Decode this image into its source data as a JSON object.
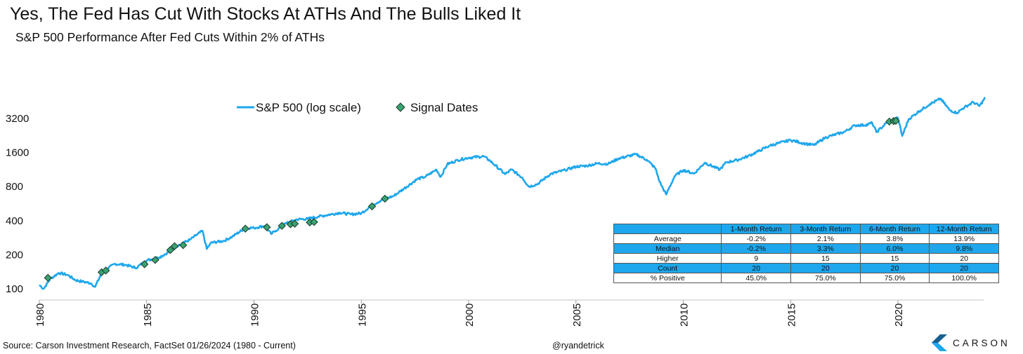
{
  "title": "Yes, The Fed Has Cut With Stocks At ATHs And The Bulls Liked It",
  "subtitle": "S&P 500 Performance After Fed Cuts Within 2% of ATHs",
  "colors": {
    "line": "#1ea7ec",
    "marker_fill": "#3aa372",
    "marker_stroke": "#1c3a2a",
    "table_header": "#1ea7ec"
  },
  "chart_data": {
    "type": "line",
    "y_scale": "log",
    "ylim": [
      100,
      5000
    ],
    "xlim": [
      1980,
      2024.2
    ],
    "x_ticks": [
      "1980",
      "1985",
      "1990",
      "1995",
      "2000",
      "2005",
      "2010",
      "2015",
      "2020"
    ],
    "y_ticks": [
      "100",
      "200",
      "400",
      "800",
      "1600",
      "3200"
    ],
    "legend_position": "top-center",
    "series": [
      {
        "name": "S&P 500 (log scale)",
        "points": [
          [
            1980.0,
            108
          ],
          [
            1980.2,
            100
          ],
          [
            1980.5,
            122
          ],
          [
            1980.9,
            138
          ],
          [
            1981.3,
            133
          ],
          [
            1981.7,
            119
          ],
          [
            1982.0,
            116
          ],
          [
            1982.4,
            112
          ],
          [
            1982.6,
            104
          ],
          [
            1982.9,
            138
          ],
          [
            1983.5,
            166
          ],
          [
            1984.0,
            163
          ],
          [
            1984.5,
            153
          ],
          [
            1985.0,
            178
          ],
          [
            1985.6,
            190
          ],
          [
            1986.0,
            210
          ],
          [
            1986.5,
            245
          ],
          [
            1987.0,
            270
          ],
          [
            1987.6,
            325
          ],
          [
            1987.8,
            225
          ],
          [
            1988.0,
            255
          ],
          [
            1988.6,
            265
          ],
          [
            1989.0,
            290
          ],
          [
            1989.6,
            345
          ],
          [
            1990.0,
            345
          ],
          [
            1990.5,
            360
          ],
          [
            1990.8,
            305
          ],
          [
            1991.0,
            325
          ],
          [
            1991.5,
            380
          ],
          [
            1992.0,
            410
          ],
          [
            1992.5,
            415
          ],
          [
            1993.0,
            435
          ],
          [
            1993.6,
            455
          ],
          [
            1994.0,
            470
          ],
          [
            1994.5,
            455
          ],
          [
            1995.0,
            465
          ],
          [
            1995.5,
            550
          ],
          [
            1996.0,
            615
          ],
          [
            1996.5,
            660
          ],
          [
            1997.0,
            770
          ],
          [
            1997.6,
            930
          ],
          [
            1998.0,
            980
          ],
          [
            1998.5,
            1130
          ],
          [
            1998.7,
            975
          ],
          [
            1999.0,
            1260
          ],
          [
            1999.5,
            1370
          ],
          [
            2000.0,
            1440
          ],
          [
            2000.7,
            1480
          ],
          [
            2001.0,
            1350
          ],
          [
            2001.7,
            1030
          ],
          [
            2002.0,
            1130
          ],
          [
            2002.5,
            960
          ],
          [
            2002.8,
            800
          ],
          [
            2003.2,
            840
          ],
          [
            2003.8,
            1030
          ],
          [
            2004.5,
            1120
          ],
          [
            2005.0,
            1200
          ],
          [
            2005.5,
            1220
          ],
          [
            2006.0,
            1280
          ],
          [
            2006.5,
            1270
          ],
          [
            2007.0,
            1420
          ],
          [
            2007.8,
            1540
          ],
          [
            2008.3,
            1380
          ],
          [
            2008.7,
            1160
          ],
          [
            2008.9,
            880
          ],
          [
            2009.2,
            680
          ],
          [
            2009.6,
            990
          ],
          [
            2010.0,
            1120
          ],
          [
            2010.5,
            1040
          ],
          [
            2011.0,
            1300
          ],
          [
            2011.7,
            1130
          ],
          [
            2012.0,
            1310
          ],
          [
            2012.5,
            1370
          ],
          [
            2013.0,
            1480
          ],
          [
            2013.5,
            1640
          ],
          [
            2014.0,
            1830
          ],
          [
            2014.5,
            1950
          ],
          [
            2015.0,
            2060
          ],
          [
            2015.7,
            1910
          ],
          [
            2016.1,
            1860
          ],
          [
            2016.6,
            2160
          ],
          [
            2017.0,
            2280
          ],
          [
            2017.5,
            2430
          ],
          [
            2018.0,
            2780
          ],
          [
            2018.5,
            2800
          ],
          [
            2018.8,
            2920
          ],
          [
            2019.0,
            2420
          ],
          [
            2019.5,
            2950
          ],
          [
            2020.0,
            3230
          ],
          [
            2020.2,
            2240
          ],
          [
            2020.5,
            3150
          ],
          [
            2021.0,
            3720
          ],
          [
            2021.5,
            4300
          ],
          [
            2021.99,
            4770
          ],
          [
            2022.4,
            3800
          ],
          [
            2022.75,
            3580
          ],
          [
            2023.0,
            3900
          ],
          [
            2023.5,
            4450
          ],
          [
            2023.8,
            4120
          ],
          [
            2024.07,
            4890
          ]
        ]
      },
      {
        "name": "Signal Dates",
        "points": [
          [
            1980.4,
            125
          ],
          [
            1982.9,
            140
          ],
          [
            1983.1,
            145
          ],
          [
            1984.9,
            165
          ],
          [
            1985.4,
            180
          ],
          [
            1986.1,
            220
          ],
          [
            1986.3,
            238
          ],
          [
            1986.7,
            243
          ],
          [
            1989.6,
            340
          ],
          [
            1990.6,
            350
          ],
          [
            1991.3,
            360
          ],
          [
            1991.7,
            372
          ],
          [
            1991.9,
            376
          ],
          [
            1992.6,
            386
          ],
          [
            1992.8,
            389
          ],
          [
            1995.5,
            535
          ],
          [
            1996.1,
            625
          ],
          [
            2019.6,
            3000
          ],
          [
            2019.8,
            3030
          ],
          [
            2019.9,
            3050
          ]
        ]
      }
    ]
  },
  "table": {
    "headers": [
      "",
      "1-Month Return",
      "3-Month Return",
      "6-Month Return",
      "12-Month Return"
    ],
    "rows": [
      [
        "Average",
        "-0.2%",
        "2.1%",
        "3.8%",
        "13.9%"
      ],
      [
        "Median",
        "-0.2%",
        "3.3%",
        "6.0%",
        "9.8%"
      ],
      [
        "Higher",
        "9",
        "15",
        "15",
        "20"
      ],
      [
        "Count",
        "20",
        "20",
        "20",
        "20"
      ],
      [
        "% Positive",
        "45.0%",
        "75.0%",
        "75.0%",
        "100.0%"
      ]
    ]
  },
  "footer": {
    "source": "Source: Carson Investment Research, FactSet 01/26/2024 (1980 - Current)",
    "handle": "@ryandetrick",
    "logo_text": "CARSON"
  }
}
